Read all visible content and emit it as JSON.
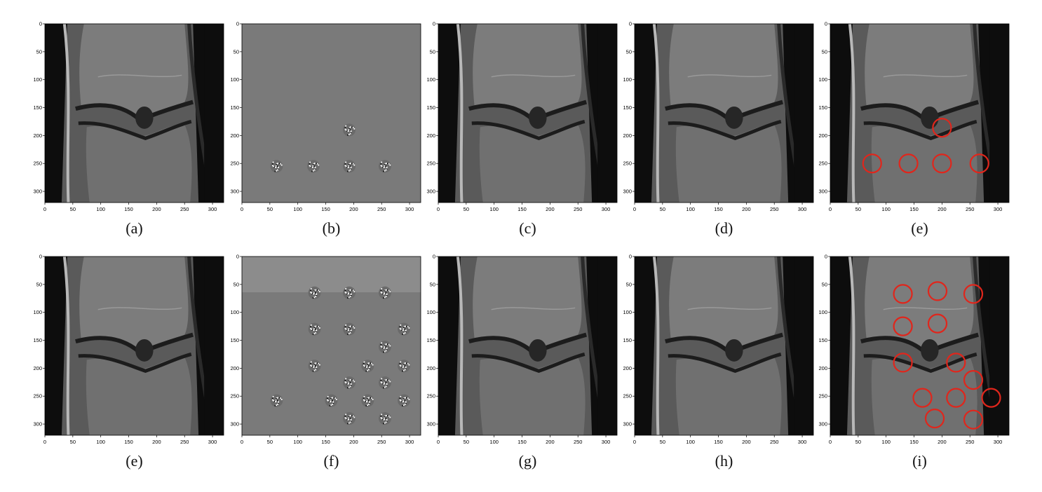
{
  "x_ticks": [
    "0",
    "50",
    "100",
    "150",
    "200",
    "250",
    "300"
  ],
  "y_ticks": [
    "0",
    "50",
    "100",
    "150",
    "200",
    "250",
    "300"
  ],
  "panels": [
    {
      "caption": "(a)",
      "kind": "mri",
      "circles": []
    },
    {
      "caption": "(b)",
      "kind": "residual",
      "spots": [
        [
          62,
          255
        ],
        [
          128,
          255
        ],
        [
          192,
          190
        ],
        [
          192,
          255
        ],
        [
          256,
          255
        ]
      ]
    },
    {
      "caption": "(c)",
      "kind": "mri",
      "circles": []
    },
    {
      "caption": "(d)",
      "kind": "mri",
      "circles": []
    },
    {
      "caption": "(e)",
      "kind": "mri",
      "circles": [
        [
          200,
          186
        ],
        [
          75,
          250
        ],
        [
          140,
          250
        ],
        [
          200,
          250
        ],
        [
          267,
          250
        ]
      ]
    },
    {
      "caption": "(e)",
      "kind": "mri",
      "circles": []
    },
    {
      "caption": "(f)",
      "kind": "residual",
      "band": 64,
      "spots": [
        [
          130,
          65
        ],
        [
          192,
          65
        ],
        [
          256,
          65
        ],
        [
          130,
          130
        ],
        [
          192,
          130
        ],
        [
          290,
          130
        ],
        [
          256,
          162
        ],
        [
          130,
          196
        ],
        [
          225,
          196
        ],
        [
          290,
          196
        ],
        [
          192,
          226
        ],
        [
          256,
          226
        ],
        [
          62,
          258
        ],
        [
          160,
          258
        ],
        [
          225,
          258
        ],
        [
          290,
          258
        ],
        [
          256,
          290
        ],
        [
          192,
          290
        ]
      ]
    },
    {
      "caption": "(g)",
      "kind": "mri",
      "circles": []
    },
    {
      "caption": "(h)",
      "kind": "mri",
      "circles": []
    },
    {
      "caption": "(i)",
      "kind": "mri",
      "circles": [
        [
          130,
          67
        ],
        [
          192,
          62
        ],
        [
          256,
          67
        ],
        [
          130,
          125
        ],
        [
          192,
          120
        ],
        [
          130,
          190
        ],
        [
          225,
          190
        ],
        [
          256,
          221
        ],
        [
          165,
          253
        ],
        [
          225,
          253
        ],
        [
          288,
          253
        ],
        [
          187,
          290
        ],
        [
          256,
          292
        ]
      ]
    }
  ]
}
